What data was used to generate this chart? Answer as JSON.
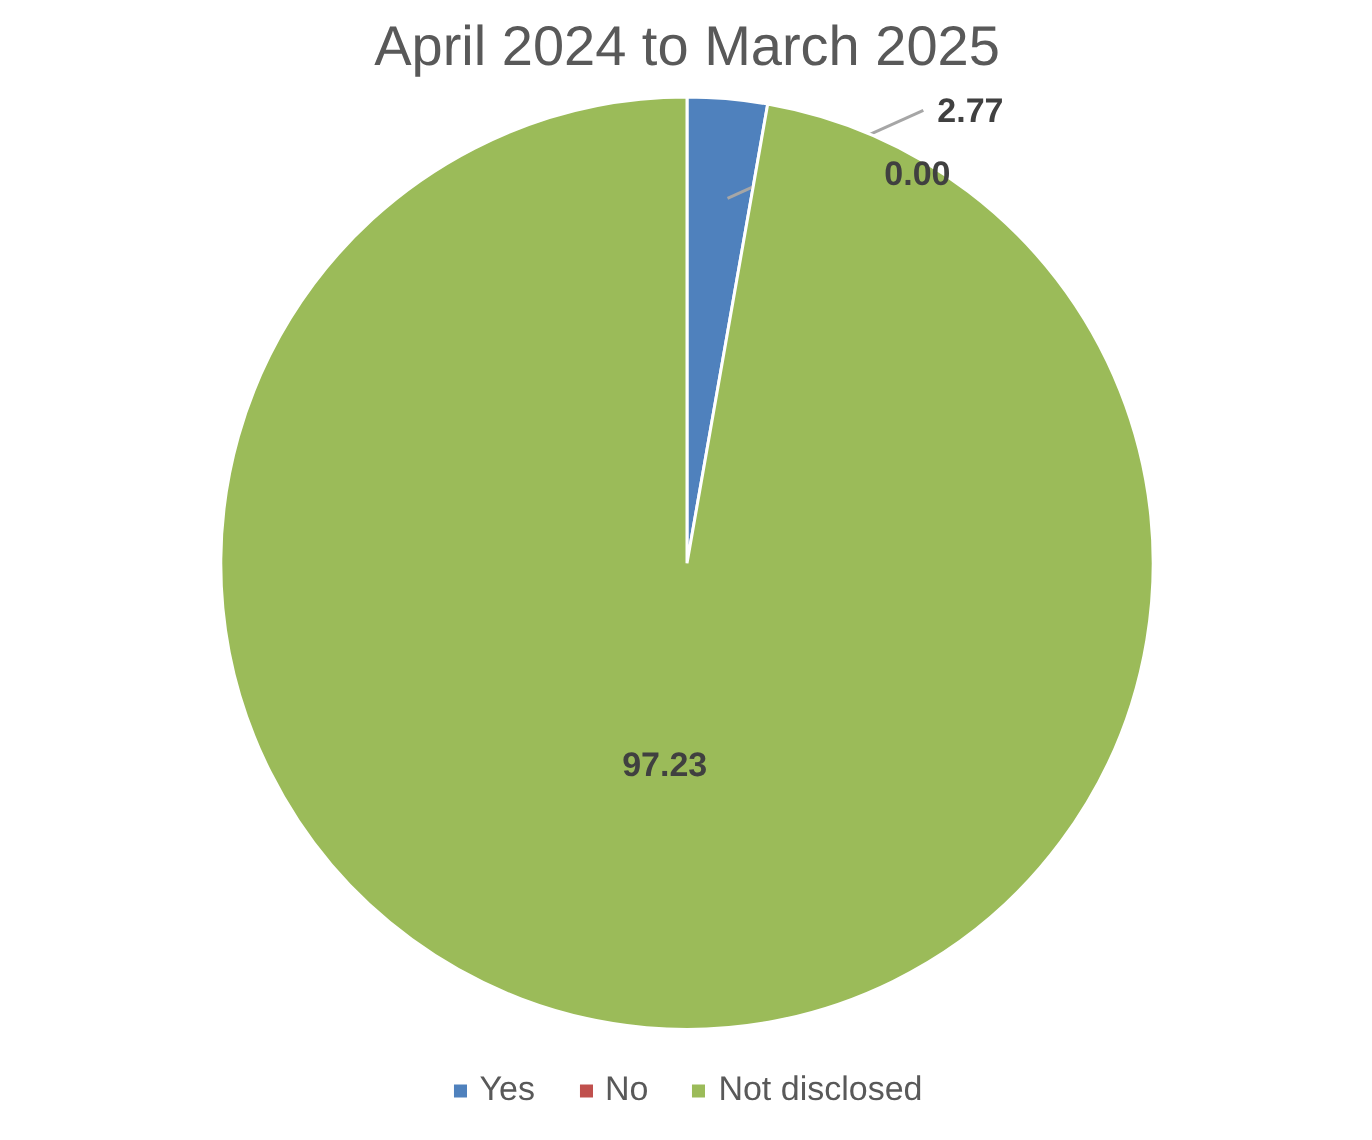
{
  "chart_data": {
    "type": "pie",
    "title": "April 2024 to March 2025",
    "categories": [
      "Yes",
      "No",
      "Not disclosed"
    ],
    "values": [
      2.77,
      0.0,
      97.23
    ],
    "value_labels": [
      "2.77",
      "0.00",
      "97.23"
    ],
    "colors": [
      "#4f81bd",
      "#c0504d",
      "#9bbb59"
    ],
    "legend": "bottom"
  }
}
